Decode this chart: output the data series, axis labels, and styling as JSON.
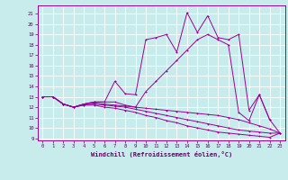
{
  "xlabel": "Windchill (Refroidissement éolien,°C)",
  "bg_color": "#c8ecec",
  "grid_color": "#ffffff",
  "line_color": "#990099",
  "xlim": [
    -0.5,
    23.5
  ],
  "ylim": [
    8.8,
    21.8
  ],
  "yticks": [
    9,
    10,
    11,
    12,
    13,
    14,
    15,
    16,
    17,
    18,
    19,
    20,
    21
  ],
  "xticks": [
    0,
    1,
    2,
    3,
    4,
    5,
    6,
    7,
    8,
    9,
    10,
    11,
    12,
    13,
    14,
    15,
    16,
    17,
    18,
    19,
    20,
    21,
    22,
    23
  ],
  "curves": [
    [
      13.0,
      13.0,
      12.3,
      12.0,
      12.3,
      12.5,
      12.5,
      14.5,
      13.3,
      13.2,
      18.5,
      18.7,
      19.0,
      17.3,
      21.1,
      19.2,
      20.8,
      18.7,
      18.5,
      19.0,
      11.7,
      13.2,
      10.8,
      null
    ],
    [
      13.0,
      13.0,
      12.3,
      12.0,
      12.3,
      12.5,
      12.5,
      12.5,
      12.2,
      12.0,
      13.5,
      14.5,
      15.5,
      16.5,
      17.5,
      18.5,
      19.0,
      18.5,
      18.0,
      11.5,
      10.7,
      13.2,
      10.8,
      9.5
    ],
    [
      13.0,
      13.0,
      12.3,
      12.0,
      12.3,
      12.4,
      12.3,
      12.2,
      12.1,
      12.0,
      11.9,
      11.8,
      11.7,
      11.6,
      11.5,
      11.4,
      11.3,
      11.2,
      11.0,
      10.8,
      10.5,
      10.2,
      9.9,
      9.5
    ],
    [
      13.0,
      13.0,
      12.3,
      12.0,
      12.2,
      12.3,
      12.2,
      12.1,
      12.0,
      11.8,
      11.6,
      11.4,
      11.2,
      11.0,
      10.8,
      10.6,
      10.4,
      10.2,
      10.0,
      9.8,
      9.7,
      9.6,
      9.5,
      9.5
    ],
    [
      13.0,
      13.0,
      12.3,
      12.0,
      12.2,
      12.2,
      12.0,
      11.9,
      11.7,
      11.5,
      11.2,
      11.0,
      10.7,
      10.5,
      10.2,
      10.0,
      9.8,
      9.6,
      9.5,
      9.4,
      9.3,
      9.2,
      9.1,
      9.5
    ]
  ]
}
